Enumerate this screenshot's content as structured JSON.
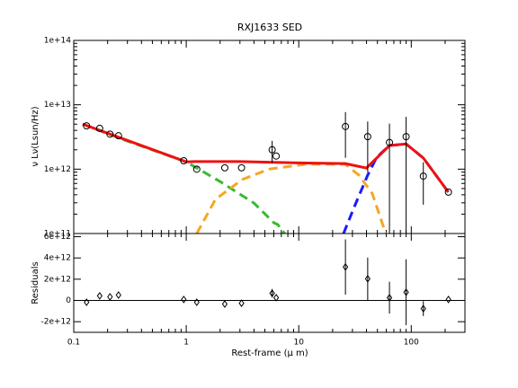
{
  "chart_data": [
    {
      "type": "scatter",
      "title": "RXJ1633 SED",
      "ylabel": "ν Lν(Lsun/Hz)",
      "xscale": "log",
      "yscale": "log",
      "xlim": [
        0.1,
        300
      ],
      "xticks": [
        0.1,
        1,
        10,
        100
      ],
      "ylim": [
        100000000000.0,
        100000000000000.0
      ],
      "yticks": [
        {
          "value": 100000000000.0,
          "label": "1e+11"
        },
        {
          "value": 1000000000000.0,
          "label": "1e+12"
        },
        {
          "value": 10000000000000.0,
          "label": "1e+13"
        },
        {
          "value": 100000000000000.0,
          "label": "1e+14"
        }
      ],
      "series": [
        {
          "kind": "line",
          "color": "#3cb832",
          "dash": "dashed",
          "x": [
            0.12,
            0.3,
            1,
            2,
            4,
            6,
            6.5,
            7.5
          ],
          "values": [
            5000000000000.0,
            2730000000000.0,
            1300000000000.0,
            640000000000.0,
            297000000000.0,
            147000000000.0,
            138000000000.0,
            100000000000.0
          ]
        },
        {
          "kind": "line",
          "color": "#f5a623",
          "dash": "dashed",
          "x": [
            1.24,
            1.82,
            3.15,
            5.46,
            11.4,
            26,
            34.2,
            45,
            59.3
          ],
          "values": [
            100000000000.0,
            340000000000.0,
            690000000000.0,
            1000000000000.0,
            1190000000000.0,
            1190000000000.0,
            810000000000.0,
            420000000000.0,
            100000000000.0
          ]
        },
        {
          "kind": "line",
          "color": "#1a1aff",
          "dash": "dashed",
          "x": [
            25,
            31.2,
            41,
            49.3,
            64,
            90,
            128,
            214
          ],
          "values": [
            100000000000.0,
            260000000000.0,
            810000000000.0,
            1530000000000.0,
            2330000000000.0,
            2460000000000.0,
            1490000000000.0,
            438000000000.0
          ]
        },
        {
          "kind": "line",
          "color": "#ee1111",
          "dash": "solid",
          "x": [
            0.12,
            1,
            1.2,
            3,
            10,
            26,
            40,
            64,
            90,
            128,
            214
          ],
          "values": [
            5000000000000.0,
            1300000000000.0,
            1310000000000.0,
            1310000000000.0,
            1250000000000.0,
            1220000000000.0,
            1040000000000.0,
            2330000000000.0,
            2460000000000.0,
            1490000000000.0,
            438000000000.0
          ]
        },
        {
          "kind": "points",
          "marker": "circle",
          "color": "#000000",
          "x": [
            0.13,
            0.17,
            0.21,
            0.25,
            0.95,
            1.24,
            2.2,
            3.1,
            5.8,
            6.3,
            26,
            41,
            64,
            90,
            128,
            214
          ],
          "values": [
            4700000000000.0,
            4300000000000.0,
            3500000000000.0,
            3300000000000.0,
            1350000000000.0,
            1000000000000.0,
            1050000000000.0,
            1050000000000.0,
            2000000000000.0,
            1600000000000.0,
            4600000000000.0,
            3200000000000.0,
            2600000000000.0,
            3200000000000.0,
            780000000000.0,
            440000000000.0
          ],
          "yerr": [
            null,
            null,
            null,
            null,
            null,
            null,
            null,
            null,
            750000000000.0,
            null,
            3100000000000.0,
            2300000000000.0,
            2500000000000.0,
            3300000000000.0,
            500000000000.0,
            null
          ]
        }
      ]
    },
    {
      "type": "scatter",
      "xlabel": "Rest-frame (μ m)",
      "ylabel": "Residuals",
      "xscale": "log",
      "yscale": "linear",
      "xlim": [
        0.1,
        300
      ],
      "xticks": [
        0.1,
        1,
        10,
        100
      ],
      "ylim": [
        -3000000000000.0,
        6300000000000.0
      ],
      "yticks": [
        {
          "value": -2000000000000.0,
          "label": "-2e+12"
        },
        0,
        {
          "value": 2000000000000.0,
          "label": "2e+12"
        },
        {
          "value": 4000000000000.0,
          "label": "4e+12"
        },
        {
          "value": 6000000000000.0,
          "label": "6e+12"
        }
      ],
      "reference_line": 0,
      "series": [
        {
          "kind": "points",
          "marker": "diamond",
          "color": "#000000",
          "x": [
            0.13,
            0.17,
            0.21,
            0.25,
            0.95,
            1.24,
            2.2,
            3.1,
            5.8,
            6.3,
            26,
            41,
            64,
            90,
            128,
            214
          ],
          "values": [
            -170000000000.0,
            430000000000.0,
            340000000000.0,
            510000000000.0,
            90000000000.0,
            -170000000000.0,
            -340000000000.0,
            -260000000000.0,
            680000000000.0,
            260000000000.0,
            3150000000000.0,
            2040000000000.0,
            260000000000.0,
            770000000000.0,
            -770000000000.0,
            90000000000.0
          ],
          "yerr": [
            null,
            null,
            null,
            null,
            null,
            null,
            null,
            null,
            400000000000.0,
            null,
            2600000000000.0,
            2000000000000.0,
            1500000000000.0,
            3100000000000.0,
            700000000000.0,
            null
          ]
        }
      ]
    }
  ]
}
